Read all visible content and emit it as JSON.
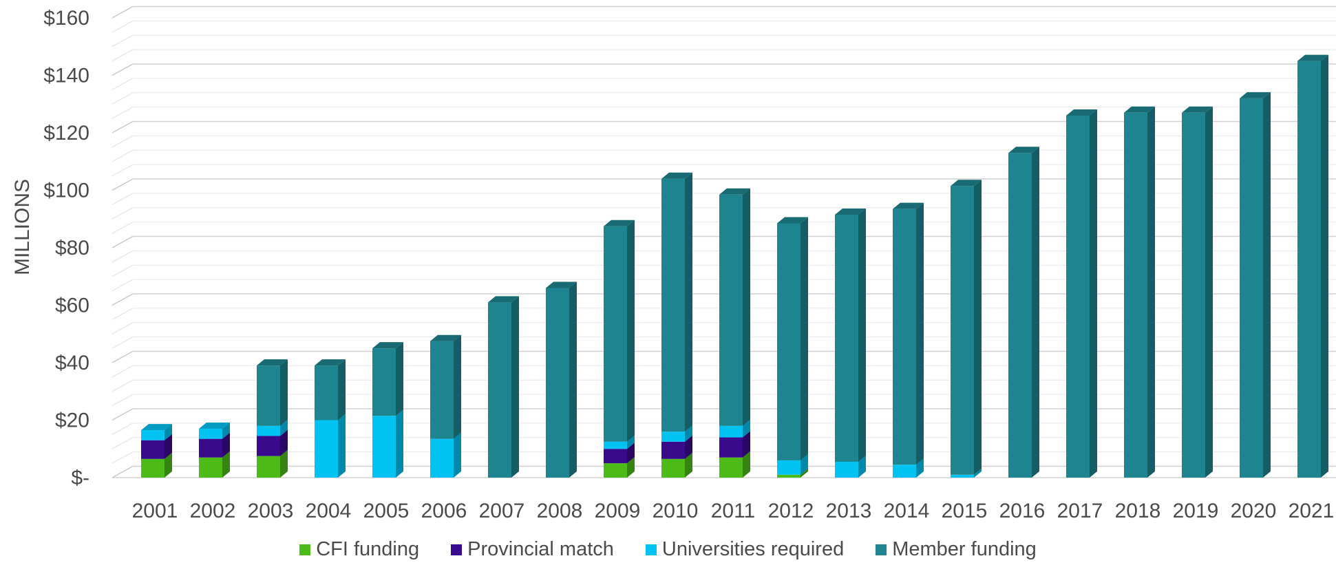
{
  "chart_data": {
    "type": "bar",
    "stacked": true,
    "three_d": true,
    "ylabel": "MILLIONS",
    "ylim": [
      0,
      160
    ],
    "yticks": [
      0,
      20,
      40,
      60,
      80,
      100,
      120,
      140,
      160
    ],
    "ytick_labels": [
      "$-",
      "$20",
      "$40",
      "$60",
      "$80",
      "$100",
      "$120",
      "$140",
      "$160"
    ],
    "grid": true,
    "legend_position": "bottom",
    "categories": [
      "2001",
      "2002",
      "2003",
      "2004",
      "2005",
      "2006",
      "2007",
      "2008",
      "2009",
      "2010",
      "2011",
      "2012",
      "2013",
      "2014",
      "2015",
      "2016",
      "2017",
      "2018",
      "2019",
      "2020",
      "2021"
    ],
    "series": [
      {
        "name": "CFI funding",
        "color": "#4cbb17",
        "values": [
          6.5,
          7,
          7.5,
          0,
          0,
          0,
          0,
          0,
          5,
          6.5,
          7,
          1,
          0,
          0,
          0,
          0,
          0,
          0,
          0,
          0,
          0
        ]
      },
      {
        "name": "Provincial match",
        "color": "#3a0a8c",
        "values": [
          6.5,
          6.5,
          7,
          0,
          0,
          0,
          0,
          0,
          5,
          6,
          7,
          0,
          0,
          0,
          0,
          0,
          0,
          0,
          0,
          0,
          0
        ]
      },
      {
        "name": "Universities required",
        "color": "#00c2f3",
        "values": [
          3.5,
          3.5,
          3.5,
          20,
          21.5,
          13.5,
          0,
          0,
          2.5,
          3.5,
          4,
          5,
          5.5,
          4.5,
          1,
          0,
          0,
          0,
          0,
          0,
          0
        ]
      },
      {
        "name": "Member funding",
        "color": "#1e8590",
        "values": [
          0,
          0,
          21,
          19,
          23.5,
          34,
          61,
          66,
          75,
          88,
          80.5,
          82.5,
          86,
          89,
          100.5,
          113,
          126,
          127,
          127,
          132,
          145
        ]
      }
    ]
  }
}
